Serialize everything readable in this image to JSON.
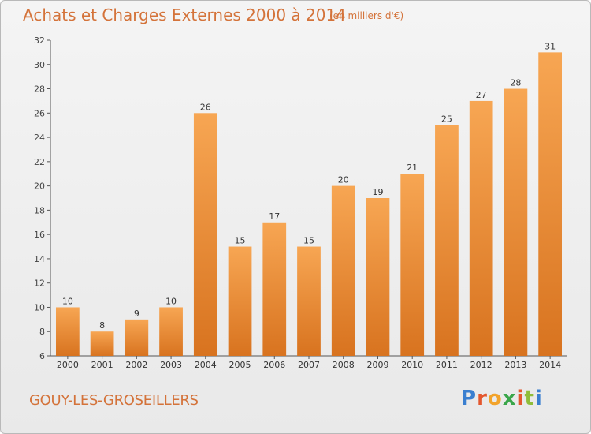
{
  "header": {
    "title": "Achats et Charges Externes 2000 à 2014",
    "subtitle": "(en milliers d'€)"
  },
  "footer": {
    "commune": "GOUY-LES-GROSEILLERS",
    "logo_letters": [
      "P",
      "r",
      "o",
      "x",
      "i",
      "t",
      "i"
    ]
  },
  "colors": {
    "accent": "#d4733a",
    "bar_top": "#f7a653",
    "bar_bottom": "#d8731f",
    "axis": "#555555"
  },
  "chart_data": {
    "type": "bar",
    "title": "Achats et Charges Externes 2000 à 2014",
    "subtitle": "(en milliers d'€)",
    "categories": [
      "2000",
      "2001",
      "2002",
      "2003",
      "2004",
      "2005",
      "2006",
      "2007",
      "2008",
      "2009",
      "2010",
      "2011",
      "2012",
      "2013",
      "2014"
    ],
    "values": [
      10,
      8,
      9,
      10,
      26,
      15,
      17,
      15,
      20,
      19,
      21,
      25,
      27,
      28,
      31
    ],
    "ylim": [
      6,
      32
    ],
    "yticks": [
      6,
      8,
      10,
      12,
      14,
      16,
      18,
      20,
      22,
      24,
      26,
      28,
      30,
      32
    ],
    "grid": false,
    "data_labels": true
  }
}
